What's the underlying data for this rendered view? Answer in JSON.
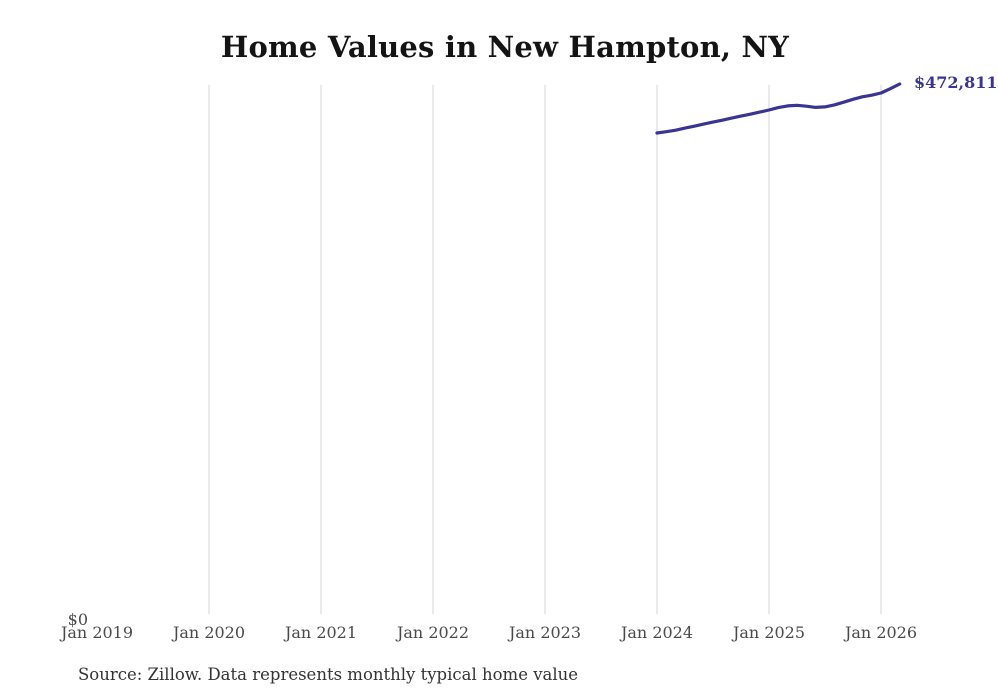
{
  "chart": {
    "title": "Home Values in New Hampton, NY",
    "source_note": "Source: Zillow. Data represents monthly typical home value",
    "y_zero_label": "$0",
    "end_value_label": "$472,811",
    "line_color": "#3a3593",
    "gridline_color": "#d6d6d6"
  },
  "chart_data": {
    "type": "line",
    "title": "Home Values in New Hampton, NY",
    "xlabel": "",
    "ylabel": "",
    "ylim": [
      0,
      480000
    ],
    "grid": "vertical-only",
    "legend": "none",
    "x_axis_tick_labels": [
      "Jan 2019",
      "Jan 2020",
      "Jan 2021",
      "Jan 2022",
      "Jan 2023",
      "Jan 2024",
      "Jan 2025",
      "Jan 2026"
    ],
    "y_axis_tick_labels": [
      "$0"
    ],
    "x": [
      "Jan 2024",
      "Feb 2024",
      "Mar 2024",
      "Apr 2024",
      "May 2024",
      "Jun 2024",
      "Jul 2024",
      "Aug 2024",
      "Sep 2024",
      "Oct 2024",
      "Nov 2024",
      "Dec 2024",
      "Jan 2025",
      "Feb 2025",
      "Mar 2025",
      "Apr 2025",
      "May 2025",
      "Jun 2025",
      "Jul 2025",
      "Aug 2025",
      "Sep 2025",
      "Oct 2025",
      "Nov 2025",
      "Dec 2025",
      "Jan 2026",
      "Feb 2026",
      "Mar 2026"
    ],
    "series": [
      {
        "name": "Monthly typical home value",
        "values": [
          429600,
          430700,
          432100,
          433900,
          435600,
          437400,
          439200,
          440900,
          442700,
          444500,
          446200,
          448000,
          449900,
          452000,
          453500,
          454000,
          453200,
          452200,
          452600,
          454400,
          456800,
          459300,
          461500,
          462900,
          464900,
          468700,
          472811
        ]
      }
    ],
    "annotations": [
      {
        "text": "$472,811",
        "x": "Mar 2026",
        "y": 472811,
        "color": "#3a3593"
      }
    ]
  }
}
